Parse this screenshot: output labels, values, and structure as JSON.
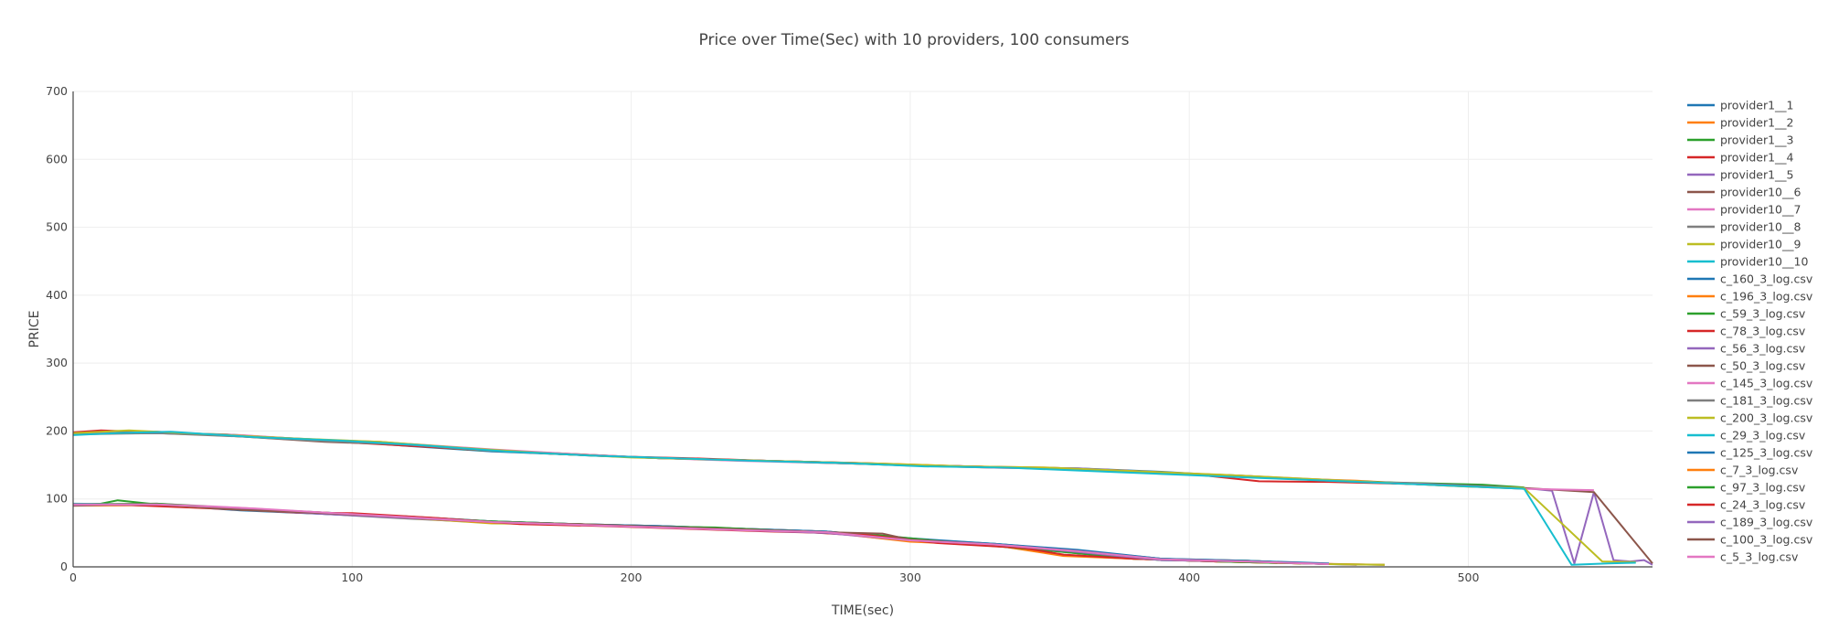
{
  "chart_data": {
    "type": "line",
    "title": "Price over Time(Sec) with 10 providers, 100 consumers",
    "xlabel": "TIME(sec)",
    "ylabel": "PRICE",
    "xlim": [
      0,
      566
    ],
    "ylim": [
      0,
      700
    ],
    "xticks": [
      0,
      100,
      200,
      300,
      400,
      500
    ],
    "yticks": [
      0,
      100,
      200,
      300,
      400,
      500,
      600,
      700
    ],
    "grid": true,
    "legend_position": "right",
    "series": [
      {
        "name": "provider1__1",
        "color": "#1f77b4",
        "x": [
          0,
          30,
          60,
          90,
          120,
          150,
          180,
          210,
          240,
          270,
          300,
          330,
          360,
          390,
          420,
          450,
          480,
          520
        ],
        "y": [
          196,
          197,
          193,
          187,
          178,
          170,
          165,
          160,
          157,
          153,
          150,
          147,
          145,
          140,
          133,
          127,
          122,
          116
        ]
      },
      {
        "name": "provider1__2",
        "color": "#ff7f0e",
        "x": [
          0,
          20,
          50,
          80,
          110,
          140,
          170,
          200,
          230,
          260,
          290,
          320,
          350,
          375,
          400,
          430,
          460,
          490,
          520
        ],
        "y": [
          196,
          200,
          194,
          188,
          184,
          174,
          168,
          162,
          158,
          155,
          152,
          148,
          146,
          142,
          137,
          131,
          127,
          120,
          115
        ]
      },
      {
        "name": "provider1__3",
        "color": "#2ca02c",
        "x": [
          0,
          25,
          55,
          85,
          115,
          145,
          175,
          205,
          235,
          265,
          295,
          325,
          355,
          385,
          415,
          445,
          475,
          505,
          520
        ],
        "y": [
          195,
          198,
          195,
          187,
          180,
          172,
          166,
          161,
          157,
          154,
          150,
          147,
          145,
          139,
          135,
          128,
          124,
          121,
          117
        ]
      },
      {
        "name": "provider1__4",
        "color": "#d62728",
        "x": [
          0,
          10,
          40,
          70,
          100,
          130,
          160,
          190,
          220,
          250,
          280,
          310,
          340,
          370,
          400,
          425,
          450,
          480,
          520
        ],
        "y": [
          198,
          201,
          196,
          191,
          183,
          176,
          169,
          163,
          160,
          156,
          153,
          149,
          146,
          143,
          137,
          126,
          125,
          122,
          116
        ]
      },
      {
        "name": "provider1__5",
        "color": "#9467bd",
        "x": [
          0,
          30,
          60,
          90,
          120,
          150,
          180,
          210,
          240,
          270,
          300,
          330,
          360,
          390,
          420,
          450,
          480,
          520,
          530,
          538,
          545,
          552,
          558,
          563,
          566
        ],
        "y": [
          196,
          198,
          193,
          186,
          180,
          171,
          165,
          160,
          157,
          154,
          150,
          147,
          145,
          139,
          134,
          127,
          123,
          116,
          112,
          5,
          110,
          10,
          8,
          10,
          3
        ]
      },
      {
        "name": "provider10__6",
        "color": "#8c564b",
        "x": [
          0,
          30,
          60,
          90,
          120,
          150,
          180,
          210,
          240,
          270,
          300,
          330,
          360,
          390,
          420,
          450,
          480,
          520,
          545,
          566
        ],
        "y": [
          197,
          199,
          192,
          184,
          180,
          172,
          166,
          160,
          157,
          154,
          149,
          146,
          144,
          138,
          134,
          127,
          122,
          116,
          110,
          5
        ]
      },
      {
        "name": "provider10__7",
        "color": "#e377c2",
        "x": [
          0,
          30,
          60,
          90,
          120,
          150,
          180,
          210,
          240,
          270,
          300,
          330,
          360,
          390,
          420,
          450,
          480,
          520,
          545
        ],
        "y": [
          196,
          198,
          194,
          186,
          181,
          173,
          166,
          160,
          156,
          153,
          150,
          146,
          144,
          137,
          134,
          128,
          122,
          115,
          113
        ]
      },
      {
        "name": "provider10__8",
        "color": "#7f7f7f",
        "x": [
          0,
          30,
          60,
          90,
          120,
          150,
          180,
          210,
          240,
          270,
          300,
          330,
          360,
          390,
          420,
          450,
          480,
          520
        ],
        "y": [
          195,
          197,
          192,
          185,
          180,
          171,
          165,
          160,
          157,
          153,
          150,
          147,
          144,
          138,
          133,
          127,
          122,
          116
        ]
      },
      {
        "name": "provider10__9",
        "color": "#bcbd22",
        "x": [
          0,
          20,
          50,
          80,
          110,
          140,
          170,
          200,
          230,
          260,
          290,
          320,
          350,
          380,
          410,
          440,
          470,
          500,
          520,
          548,
          560
        ],
        "y": [
          197,
          201,
          195,
          189,
          184,
          175,
          167,
          161,
          158,
          155,
          152,
          148,
          146,
          141,
          136,
          130,
          124,
          118,
          116,
          8,
          7
        ]
      },
      {
        "name": "provider10__10",
        "color": "#17becf",
        "x": [
          0,
          15,
          35,
          65,
          95,
          125,
          155,
          185,
          215,
          245,
          275,
          305,
          335,
          365,
          395,
          425,
          455,
          485,
          520,
          537,
          550,
          560
        ],
        "y": [
          194,
          197,
          199,
          191,
          186,
          179,
          170,
          164,
          160,
          156,
          153,
          148,
          146,
          141,
          136,
          131,
          126,
          121,
          115,
          3,
          5,
          6
        ]
      },
      {
        "name": "c_160_3_log.csv",
        "color": "#1f77b4",
        "x": [
          0,
          30,
          60,
          90,
          120,
          150,
          180,
          210,
          240,
          270,
          300,
          330,
          360,
          390,
          420,
          450,
          470
        ],
        "y": [
          92,
          92,
          83,
          78,
          72,
          67,
          63,
          60,
          56,
          52,
          40,
          33,
          22,
          10,
          8,
          4,
          3
        ]
      },
      {
        "name": "c_196_3_log.csv",
        "color": "#ff7f0e",
        "x": [
          0,
          30,
          60,
          90,
          120,
          150,
          180,
          210,
          240,
          270,
          300,
          330,
          355,
          380,
          410,
          440,
          470
        ],
        "y": [
          90,
          91,
          85,
          79,
          73,
          66,
          63,
          59,
          55,
          51,
          38,
          32,
          16,
          12,
          8,
          5,
          3
        ]
      },
      {
        "name": "c_59_3_log.csv",
        "color": "#2ca02c",
        "x": [
          0,
          10,
          16,
          30,
          60,
          90,
          120,
          150,
          180,
          210,
          240,
          270,
          300,
          330,
          360,
          390,
          420,
          450
        ],
        "y": [
          92,
          93,
          98,
          92,
          84,
          79,
          74,
          66,
          62,
          58,
          54,
          51,
          40,
          32,
          20,
          10,
          9,
          4
        ]
      },
      {
        "name": "c_78_3_log.csv",
        "color": "#d62728",
        "x": [
          0,
          20,
          50,
          80,
          110,
          140,
          170,
          200,
          230,
          260,
          290,
          320,
          350,
          380,
          410,
          440
        ],
        "y": [
          92,
          91,
          86,
          80,
          75,
          68,
          63,
          60,
          56,
          52,
          44,
          34,
          25,
          12,
          8,
          5
        ]
      },
      {
        "name": "c_56_3_log.csv",
        "color": "#9467bd",
        "x": [
          0,
          30,
          60,
          90,
          120,
          150,
          180,
          210,
          240,
          270,
          300,
          330,
          360,
          390,
          420,
          450
        ],
        "y": [
          91,
          91,
          85,
          79,
          72,
          66,
          62,
          59,
          55,
          51,
          39,
          33,
          23,
          11,
          9,
          4
        ]
      },
      {
        "name": "c_50_3_log.csv",
        "color": "#8c564b",
        "x": [
          0,
          30,
          60,
          90,
          120,
          150,
          180,
          210,
          240,
          270,
          300,
          330,
          360,
          390,
          420,
          460
        ],
        "y": [
          90,
          92,
          86,
          80,
          74,
          67,
          63,
          60,
          56,
          52,
          41,
          34,
          24,
          12,
          8,
          3
        ]
      },
      {
        "name": "c_145_3_log.csv",
        "color": "#e377c2",
        "x": [
          0,
          30,
          60,
          90,
          120,
          150,
          180,
          210,
          240,
          270,
          300,
          330,
          360,
          390,
          420,
          450
        ],
        "y": [
          91,
          93,
          87,
          79,
          73,
          66,
          62,
          58,
          54,
          50,
          38,
          32,
          22,
          11,
          9,
          4
        ]
      },
      {
        "name": "c_181_3_log.csv",
        "color": "#7f7f7f",
        "x": [
          0,
          30,
          60,
          90,
          120,
          150,
          180,
          210,
          240,
          270,
          300,
          330,
          360,
          390,
          420,
          450
        ],
        "y": [
          92,
          92,
          84,
          78,
          71,
          65,
          62,
          59,
          55,
          51,
          39,
          33,
          23,
          12,
          9,
          4
        ]
      },
      {
        "name": "c_200_3_log.csv",
        "color": "#bcbd22",
        "x": [
          0,
          30,
          60,
          90,
          120,
          150,
          180,
          210,
          240,
          270,
          300,
          330,
          360,
          390,
          420,
          450,
          470
        ],
        "y": [
          91,
          91,
          85,
          79,
          72,
          64,
          63,
          59,
          55,
          51,
          38,
          32,
          22,
          11,
          9,
          4,
          3
        ]
      },
      {
        "name": "c_29_3_log.csv",
        "color": "#17becf",
        "x": [
          0,
          30,
          60,
          90,
          120,
          150,
          180,
          210,
          240,
          270,
          300,
          330,
          360,
          390,
          420,
          450
        ],
        "y": [
          93,
          92,
          85,
          79,
          73,
          66,
          62,
          58,
          54,
          51,
          40,
          34,
          24,
          12,
          8,
          4
        ]
      },
      {
        "name": "c_125_3_log.csv",
        "color": "#1f77b4",
        "x": [
          0,
          30,
          60,
          90,
          120,
          150,
          180,
          210,
          240,
          270,
          300,
          330,
          360,
          390,
          420,
          450
        ],
        "y": [
          92,
          92,
          86,
          80,
          74,
          67,
          63,
          60,
          56,
          52,
          42,
          34,
          25,
          12,
          9,
          5
        ]
      },
      {
        "name": "c_7_3_log.csv",
        "color": "#ff7f0e",
        "x": [
          0,
          30,
          60,
          90,
          120,
          150,
          180,
          210,
          240,
          270,
          300,
          330,
          355,
          380,
          410,
          440
        ],
        "y": [
          91,
          91,
          85,
          80,
          72,
          65,
          62,
          59,
          55,
          51,
          37,
          32,
          17,
          12,
          8,
          5
        ]
      },
      {
        "name": "c_97_3_log.csv",
        "color": "#2ca02c",
        "x": [
          0,
          30,
          60,
          90,
          120,
          150,
          180,
          210,
          230,
          260,
          290,
          320,
          350,
          380,
          410,
          440
        ],
        "y": [
          92,
          93,
          86,
          79,
          73,
          67,
          63,
          59,
          58,
          52,
          46,
          34,
          24,
          12,
          8,
          5
        ]
      },
      {
        "name": "c_24_3_log.csv",
        "color": "#d62728",
        "x": [
          0,
          20,
          50,
          80,
          100,
          130,
          160,
          190,
          220,
          250,
          280,
          310,
          340,
          355,
          380,
          410
        ],
        "y": [
          92,
          91,
          88,
          80,
          79,
          72,
          63,
          60,
          56,
          52,
          49,
          35,
          28,
          18,
          12,
          8
        ]
      },
      {
        "name": "c_189_3_log.csv",
        "color": "#9467bd",
        "x": [
          0,
          30,
          60,
          90,
          120,
          150,
          180,
          210,
          240,
          270,
          300,
          330,
          360,
          390,
          420,
          450
        ],
        "y": [
          91,
          92,
          85,
          78,
          72,
          66,
          62,
          58,
          54,
          50,
          39,
          33,
          22,
          10,
          8,
          4
        ]
      },
      {
        "name": "c_100_3_log.csv",
        "color": "#8c564b",
        "x": [
          0,
          30,
          60,
          90,
          120,
          150,
          180,
          210,
          240,
          270,
          290,
          300,
          330,
          360,
          390,
          420,
          450
        ],
        "y": [
          92,
          92,
          84,
          79,
          73,
          66,
          63,
          59,
          55,
          51,
          49,
          40,
          33,
          23,
          11,
          8,
          4
        ]
      },
      {
        "name": "c_5_3_log.csv",
        "color": "#e377c2",
        "x": [
          0,
          30,
          65,
          90,
          120,
          150,
          180,
          210,
          240,
          270,
          300,
          330,
          360,
          390,
          420,
          450
        ],
        "y": [
          92,
          92,
          86,
          80,
          73,
          66,
          62,
          58,
          54,
          51,
          39,
          33,
          23,
          11,
          8,
          4
        ]
      }
    ]
  }
}
